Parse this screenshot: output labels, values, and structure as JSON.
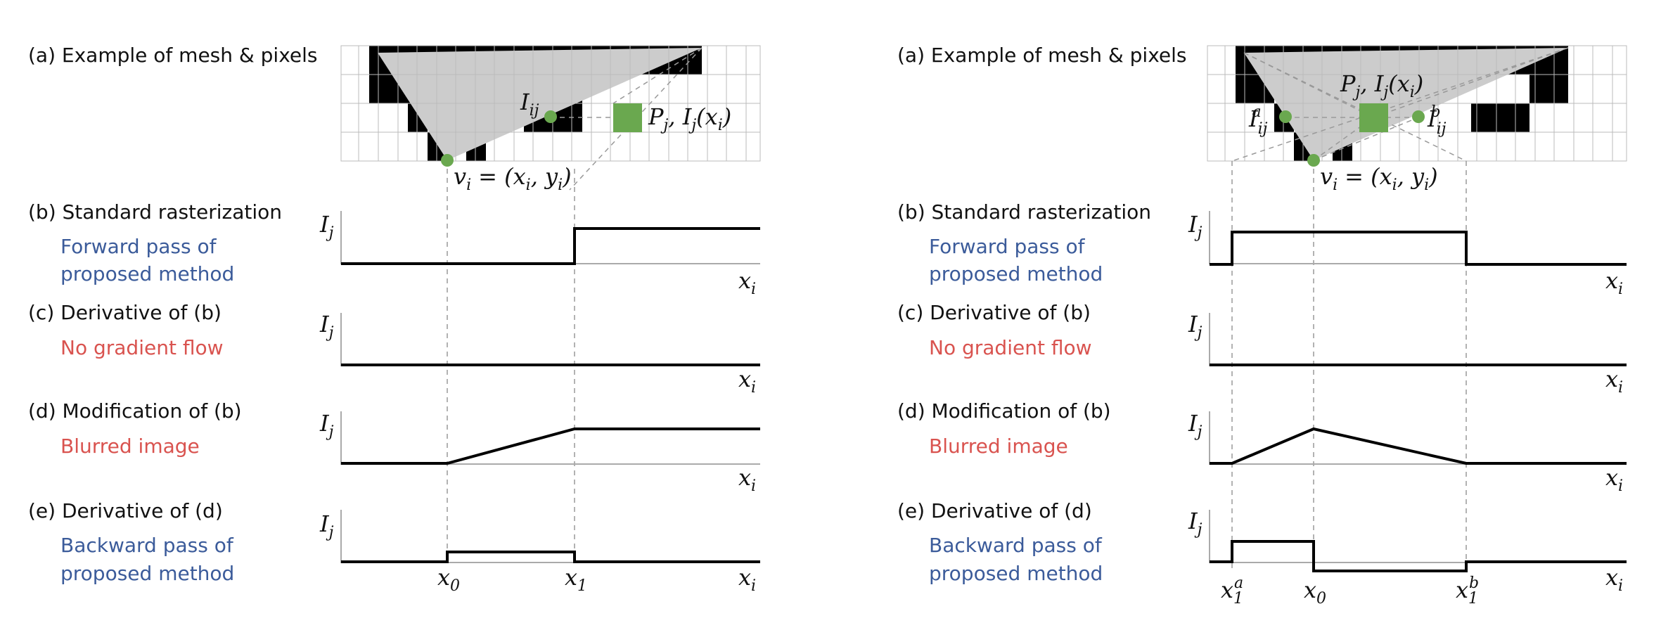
{
  "colors": {
    "signal": "#000000",
    "triangle": "#cccccc",
    "pixel_dark": "#000000",
    "point_green": "#6aa84f",
    "blue_text": "#3b5b9a",
    "red_text": "#d9534f",
    "grid": "#bbbbbb"
  },
  "left": {
    "row_a": "(a) Example of mesh & pixels",
    "row_b": "(b) Standard rasterization",
    "row_b_sub1": "Forward pass of",
    "row_b_sub2": "proposed method",
    "row_c": "(c) Derivative of (b)",
    "row_c_sub": "No gradient flow",
    "row_d": "(d) Modification of (b)",
    "row_d_sub": "Blurred image",
    "row_e": "(e) Derivative of (d)",
    "row_e_sub1": "Backward pass of",
    "row_e_sub2": "proposed method",
    "label_Iij": "I",
    "label_Iij_sub": "ij",
    "label_Pj": "P",
    "label_Pj_sub": "j",
    "label_Ij_xi": ", I",
    "label_Ij_xi_sub": "j",
    "label_Ij_xi_arg": "(x",
    "label_Ij_xi_arg_sub": "i",
    "label_Ij_xi_close": ")",
    "label_vi": "v",
    "label_vi_sub": "i",
    "label_vi_eq": "= (x",
    "label_vi_x_sub": "i",
    "label_vi_comma": ", y",
    "label_vi_y_sub": "i",
    "label_vi_close": ")",
    "x0": "x",
    "x0_sub": "0",
    "x1": "x",
    "x1_sub": "1"
  },
  "right": {
    "row_a": "(a) Example of mesh & pixels",
    "row_b": "(b) Standard rasterization",
    "row_b_sub1": "Forward pass of",
    "row_b_sub2": "proposed method",
    "row_c": "(c) Derivative of (b)",
    "row_c_sub": "No gradient flow",
    "row_d": "(d) Modification of (b)",
    "row_d_sub": "Blurred image",
    "row_e": "(e) Derivative of (d)",
    "row_e_sub1": "Backward pass of",
    "row_e_sub2": "proposed method",
    "label_Pj": "P",
    "label_Pj_sub": "j",
    "label_Ij_xi": ", I",
    "label_Ij_xi_sub": "j",
    "label_Ij_xi_arg": "(x",
    "label_Ij_xi_arg_sub": "i",
    "label_Ij_xi_close": ")",
    "label_Ia": "I",
    "label_Ia_sub": "ij",
    "label_Ia_sup": "a",
    "label_Ib": "I",
    "label_Ib_sub": "ij",
    "label_Ib_sup": "b",
    "label_vi": "v",
    "label_vi_sub": "i",
    "label_vi_eq": "= (x",
    "label_vi_x_sub": "i",
    "label_vi_comma": ", y",
    "label_vi_y_sub": "i",
    "label_vi_close": ")",
    "x1a": "x",
    "x1a_sub": "1",
    "x1a_sup": "a",
    "x0": "x",
    "x0_sub": "0",
    "x1b": "x",
    "x1b_sub": "1",
    "x1b_sup": "b"
  },
  "axis": {
    "y": "I",
    "y_sub": "j",
    "x": "x",
    "x_sub": "i"
  }
}
